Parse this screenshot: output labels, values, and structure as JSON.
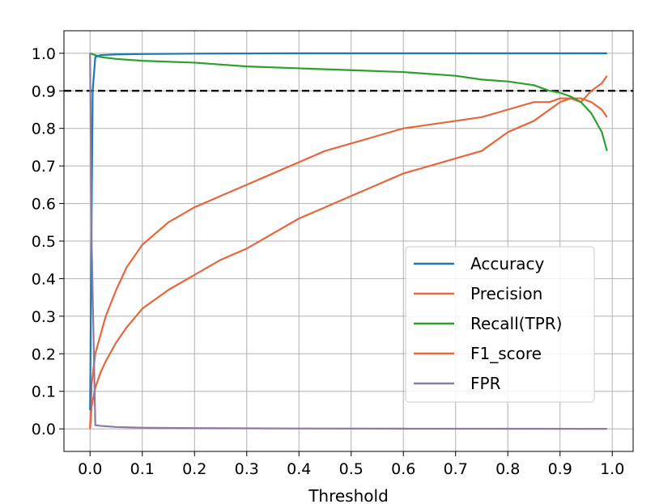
{
  "chart_data": {
    "type": "line",
    "xlabel": "Threshold",
    "ylabel": "",
    "xlim": [
      -0.05,
      1.04
    ],
    "ylim": [
      -0.06,
      1.06
    ],
    "x_ticks": [
      "0.0",
      "0.1",
      "0.2",
      "0.3",
      "0.4",
      "0.5",
      "0.6",
      "0.7",
      "0.8",
      "0.9",
      "1.0"
    ],
    "y_ticks": [
      "0.0",
      "0.1",
      "0.2",
      "0.3",
      "0.4",
      "0.5",
      "0.6",
      "0.7",
      "0.8",
      "0.9",
      "1.0"
    ],
    "grid": true,
    "legend_position": "lower right",
    "reference_line": {
      "y": 0.9,
      "style": "dashed",
      "color": "#000000"
    },
    "series": [
      {
        "name": "Accuracy",
        "color": "#1f77b4",
        "x": [
          0.0,
          0.005,
          0.01,
          0.02,
          0.05,
          0.1,
          0.2,
          0.4,
          0.6,
          0.8,
          0.99
        ],
        "y": [
          0.05,
          0.9,
          0.99,
          0.995,
          0.997,
          0.998,
          0.999,
          1.0,
          1.0,
          1.0,
          1.0
        ]
      },
      {
        "name": "Precision",
        "color": "#e8663c",
        "x": [
          0.0,
          0.003,
          0.01,
          0.02,
          0.03,
          0.05,
          0.07,
          0.1,
          0.15,
          0.2,
          0.25,
          0.3,
          0.35,
          0.4,
          0.45,
          0.5,
          0.55,
          0.6,
          0.65,
          0.7,
          0.75,
          0.8,
          0.85,
          0.88,
          0.9,
          0.92,
          0.94,
          0.96,
          0.98,
          0.99
        ],
        "y": [
          0.0,
          0.12,
          0.2,
          0.25,
          0.3,
          0.37,
          0.43,
          0.49,
          0.55,
          0.59,
          0.62,
          0.65,
          0.68,
          0.71,
          0.74,
          0.76,
          0.78,
          0.8,
          0.81,
          0.82,
          0.83,
          0.85,
          0.87,
          0.87,
          0.88,
          0.88,
          0.87,
          0.9,
          0.92,
          0.94
        ]
      },
      {
        "name": "Recall(TPR)",
        "color": "#2ca02c",
        "x": [
          0.0,
          0.01,
          0.02,
          0.05,
          0.1,
          0.2,
          0.3,
          0.4,
          0.5,
          0.6,
          0.7,
          0.75,
          0.8,
          0.85,
          0.88,
          0.9,
          0.92,
          0.94,
          0.96,
          0.98,
          0.99
        ],
        "y": [
          1.0,
          0.995,
          0.99,
          0.985,
          0.98,
          0.975,
          0.965,
          0.96,
          0.955,
          0.95,
          0.94,
          0.93,
          0.925,
          0.915,
          0.9,
          0.895,
          0.885,
          0.87,
          0.84,
          0.79,
          0.74
        ]
      },
      {
        "name": "F1_score",
        "color": "#e8663c",
        "x": [
          0.0,
          0.003,
          0.01,
          0.02,
          0.03,
          0.05,
          0.07,
          0.1,
          0.15,
          0.2,
          0.25,
          0.3,
          0.35,
          0.4,
          0.45,
          0.5,
          0.55,
          0.6,
          0.65,
          0.7,
          0.75,
          0.8,
          0.85,
          0.88,
          0.9,
          0.92,
          0.94,
          0.96,
          0.98,
          0.99
        ],
        "y": [
          0.0,
          0.06,
          0.11,
          0.15,
          0.18,
          0.23,
          0.27,
          0.32,
          0.37,
          0.41,
          0.45,
          0.48,
          0.52,
          0.56,
          0.59,
          0.62,
          0.65,
          0.68,
          0.7,
          0.72,
          0.74,
          0.79,
          0.82,
          0.85,
          0.87,
          0.88,
          0.88,
          0.87,
          0.85,
          0.83
        ]
      },
      {
        "name": "FPR",
        "color": "#8c7aa0",
        "x": [
          0.0,
          0.003,
          0.01,
          0.02,
          0.05,
          0.1,
          0.2,
          0.4,
          0.6,
          0.8,
          0.99
        ],
        "y": [
          1.0,
          0.5,
          0.01,
          0.008,
          0.005,
          0.003,
          0.002,
          0.001,
          0.0005,
          0.0003,
          0.0
        ]
      }
    ]
  }
}
